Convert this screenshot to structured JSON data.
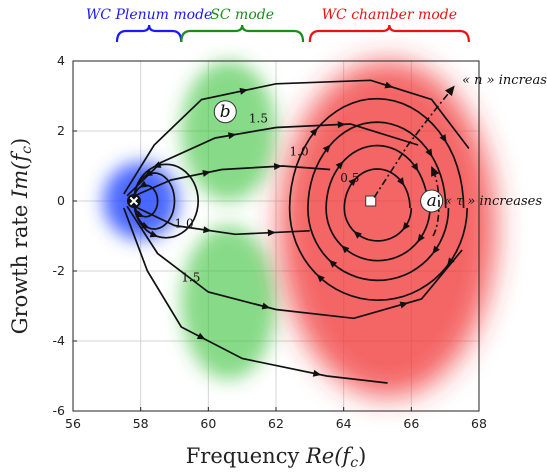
{
  "chart_data": {
    "type": "line",
    "title": "",
    "xlabel": "Frequency Re(f_c)",
    "ylabel": "Growth rate Im(f_c)",
    "xlabel_parts": {
      "text": "Frequency ",
      "math": "Re(f",
      "sub": "c",
      "close": ")"
    },
    "ylabel_parts": {
      "text": "Growth rate ",
      "math": "Im(f",
      "sub": "c",
      "close": ")"
    },
    "xlim": [
      56,
      68
    ],
    "ylim": [
      -6,
      4
    ],
    "xticks": [
      56,
      58,
      60,
      62,
      64,
      66,
      68
    ],
    "yticks": [
      -6,
      -4,
      -2,
      0,
      2,
      4
    ],
    "grid": true,
    "modes": [
      {
        "name": "WC Plenum mode",
        "color": "#1a1aff",
        "x_range": [
          57.3,
          59.2
        ]
      },
      {
        "name": "SC mode",
        "color": "#1a8c1a",
        "x_range": [
          59.2,
          62.8
        ]
      },
      {
        "name": "WC chamber mode",
        "color": "#ee1111",
        "x_range": [
          63.0,
          67.7
        ]
      }
    ],
    "regions": [
      {
        "name": "plenum",
        "color": "#2a4cff",
        "cx": 58.0,
        "cy": 0.0,
        "rx": 1.1,
        "ry": 1.1
      },
      {
        "name": "sc-upper",
        "color": "#36c136",
        "cx": 60.6,
        "cy": 2.0,
        "rx": 1.4,
        "ry": 2.0
      },
      {
        "name": "sc-lower",
        "color": "#36c136",
        "cx": 60.6,
        "cy": -2.9,
        "rx": 1.4,
        "ry": 2.2
      },
      {
        "name": "chamber",
        "color": "#f03030",
        "cx": 65.3,
        "cy": -0.8,
        "rx": 3.2,
        "ry": 4.8
      }
    ],
    "fixed_points": [
      {
        "name": "plenum-point",
        "marker": "x-circle",
        "x": 57.8,
        "y": 0.0
      },
      {
        "name": "chamber-point",
        "marker": "square",
        "x": 64.8,
        "y": 0.0
      }
    ],
    "point_labels": [
      {
        "text": "a",
        "x": 66.6,
        "y": 0.0
      },
      {
        "text": "b",
        "x": 60.5,
        "y": 2.55
      }
    ],
    "contour_labels": [
      {
        "text": "1.5",
        "x": 61.2,
        "y": 2.25
      },
      {
        "text": "1.0",
        "x": 62.4,
        "y": 1.3
      },
      {
        "text": "0.5",
        "x": 63.9,
        "y": 0.55
      },
      {
        "text": "1.0",
        "x": 59.0,
        "y": -0.75
      },
      {
        "text": "1.5",
        "x": 59.2,
        "y": -2.3
      }
    ],
    "annotations": [
      {
        "text": "« n » increases",
        "x": 67.5,
        "y": 3.35
      },
      {
        "text": "« τ » increases",
        "x": 69.2,
        "y": 0.0
      }
    ]
  }
}
